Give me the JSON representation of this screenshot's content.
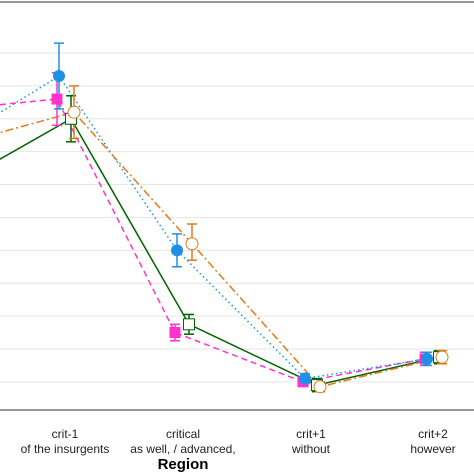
{
  "chart_data": {
    "type": "line",
    "xlabel": "Region",
    "ylabel": "",
    "ylim": [
      0,
      10.7
    ],
    "grid": true,
    "legend": "none",
    "categories": [
      {
        "id": "pre",
        "line1": "",
        "line2": ""
      },
      {
        "id": "crit-1",
        "line1": "crit-1",
        "line2": "of the insurgents"
      },
      {
        "id": "critical",
        "line1": "critical",
        "line2": "as well, / advanced,"
      },
      {
        "id": "crit+1",
        "line1": "crit+1",
        "line2": "without"
      },
      {
        "id": "crit+2",
        "line1": "crit+2",
        "line2": "however"
      }
    ],
    "series": [
      {
        "color": "#ff33cc",
        "marker": "square-filled",
        "dash": "dashed",
        "points": [
          {
            "x": "pre",
            "y": 8.4
          },
          {
            "x": "crit-1",
            "y": 8.6,
            "lo": 7.8,
            "hi": 9.4
          },
          {
            "x": "critical",
            "y": 1.5,
            "lo": 1.25,
            "hi": 1.75
          },
          {
            "x": "crit+1",
            "y": 0.0,
            "lo": -0.1,
            "hi": 0.1
          },
          {
            "x": "crit+2",
            "y": 0.7,
            "lo": 0.5,
            "hi": 0.9
          }
        ]
      },
      {
        "color": "#1e90e6",
        "marker": "circle-filled",
        "dash": "dotted",
        "points": [
          {
            "x": "pre",
            "y": 8.0
          },
          {
            "x": "crit-1",
            "y": 9.3,
            "lo": 8.3,
            "hi": 10.3
          },
          {
            "x": "critical",
            "y": 4.0,
            "lo": 3.5,
            "hi": 4.5
          },
          {
            "x": "crit+1",
            "y": 0.1,
            "lo": -0.05,
            "hi": 0.25
          },
          {
            "x": "crit+2",
            "y": 0.7,
            "lo": 0.5,
            "hi": 0.9
          }
        ]
      },
      {
        "color": "#006400",
        "marker": "square-open",
        "dash": "solid",
        "points": [
          {
            "x": "pre",
            "y": 6.6
          },
          {
            "x": "crit-1",
            "y": 8.0,
            "lo": 7.3,
            "hi": 8.7
          },
          {
            "x": "critical",
            "y": 1.75,
            "lo": 1.45,
            "hi": 2.05
          },
          {
            "x": "crit+1",
            "y": -0.1,
            "lo": -0.3,
            "hi": 0.1
          },
          {
            "x": "crit+2",
            "y": 0.75,
            "lo": 0.55,
            "hi": 0.95
          }
        ]
      },
      {
        "color": "#e07b1a",
        "marker": "circle-open",
        "dash": "dashdot",
        "points": [
          {
            "x": "pre",
            "y": 7.5
          },
          {
            "x": "crit-1",
            "y": 8.2,
            "lo": 7.4,
            "hi": 9.0
          },
          {
            "x": "critical",
            "y": 4.2,
            "lo": 3.7,
            "hi": 4.8
          },
          {
            "x": "crit+1",
            "y": -0.15,
            "lo": -0.3,
            "hi": 0.0
          },
          {
            "x": "crit+2",
            "y": 0.75,
            "lo": 0.55,
            "hi": 0.95
          }
        ]
      }
    ]
  }
}
